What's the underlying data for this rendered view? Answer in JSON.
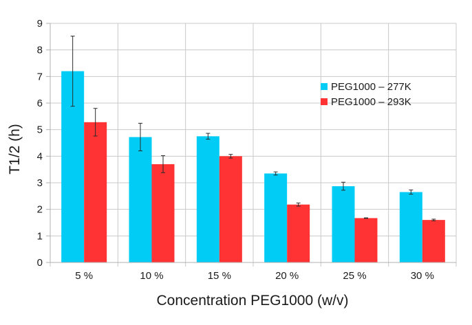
{
  "chart_data": {
    "type": "bar",
    "title": "",
    "xlabel": "Concentration PEG1000 (w/v)",
    "ylabel": "T1/2 (h)",
    "ylim": [
      0,
      9
    ],
    "yticks": [
      "0",
      "1",
      "2",
      "3",
      "4",
      "5",
      "6",
      "7",
      "8",
      "9"
    ],
    "grid": true,
    "legend_position": "right",
    "categories": [
      "5 %",
      "10 %",
      "15 %",
      "20 %",
      "25 %",
      "30 %"
    ],
    "series": [
      {
        "name": "PEG1000 – 277K",
        "color": "#00ccf5",
        "values": [
          7.2,
          4.72,
          4.75,
          3.35,
          2.87,
          2.65
        ],
        "errors": [
          1.32,
          0.52,
          0.11,
          0.06,
          0.15,
          0.08
        ]
      },
      {
        "name": "PEG1000 – 293K",
        "color": "#ff3333",
        "values": [
          5.28,
          3.7,
          4.0,
          2.18,
          1.67,
          1.6
        ],
        "errors": [
          0.52,
          0.32,
          0.07,
          0.06,
          0.01,
          0.03
        ]
      }
    ]
  }
}
